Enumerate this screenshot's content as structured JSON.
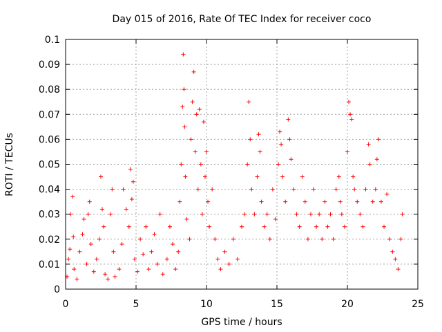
{
  "chart_data": {
    "type": "scatter",
    "title": "Day 015 of 2016, Rate Of TEC Index for receiver coco",
    "xlabel": "GPS time / hours",
    "ylabel": "ROTI / TECUs",
    "xlim": [
      0,
      25
    ],
    "ylim": [
      0,
      0.1
    ],
    "xticks": [
      0,
      5,
      10,
      15,
      20,
      25
    ],
    "xtick_labels": [
      "0",
      "5",
      "10",
      "15",
      "20",
      "25"
    ],
    "yticks": [
      0,
      0.01,
      0.02,
      0.03,
      0.04,
      0.05,
      0.06,
      0.07,
      0.08,
      0.09,
      0.1
    ],
    "ytick_labels": [
      "0",
      "0.01",
      "0.02",
      "0.03",
      "0.04",
      "0.05",
      "0.06",
      "0.07",
      "0.08",
      "0.09",
      "0.1"
    ],
    "grid": true,
    "marker": "+",
    "color": "#ff0000",
    "series": [
      {
        "name": "ROTI",
        "points": [
          [
            0.1,
            0.005
          ],
          [
            0.2,
            0.012
          ],
          [
            0.3,
            0.016
          ],
          [
            0.35,
            0.03
          ],
          [
            0.5,
            0.037
          ],
          [
            0.55,
            0.021
          ],
          [
            0.6,
            0.008
          ],
          [
            0.8,
            0.004
          ],
          [
            1.0,
            0.015
          ],
          [
            1.2,
            0.022
          ],
          [
            1.3,
            0.028
          ],
          [
            1.5,
            0.01
          ],
          [
            1.6,
            0.03
          ],
          [
            1.7,
            0.035
          ],
          [
            1.8,
            0.018
          ],
          [
            2.0,
            0.007
          ],
          [
            2.2,
            0.012
          ],
          [
            2.4,
            0.02
          ],
          [
            2.5,
            0.045
          ],
          [
            2.6,
            0.032
          ],
          [
            2.7,
            0.025
          ],
          [
            2.8,
            0.006
          ],
          [
            3.0,
            0.004
          ],
          [
            3.2,
            0.03
          ],
          [
            3.3,
            0.04
          ],
          [
            3.4,
            0.015
          ],
          [
            3.5,
            0.005
          ],
          [
            3.8,
            0.008
          ],
          [
            4.0,
            0.018
          ],
          [
            4.1,
            0.04
          ],
          [
            4.3,
            0.032
          ],
          [
            4.5,
            0.025
          ],
          [
            4.6,
            0.048
          ],
          [
            4.7,
            0.036
          ],
          [
            4.8,
            0.043
          ],
          [
            4.9,
            0.012
          ],
          [
            5.1,
            0.007
          ],
          [
            5.3,
            0.02
          ],
          [
            5.5,
            0.014
          ],
          [
            5.7,
            0.025
          ],
          [
            5.9,
            0.008
          ],
          [
            6.1,
            0.015
          ],
          [
            6.3,
            0.022
          ],
          [
            6.5,
            0.01
          ],
          [
            6.7,
            0.03
          ],
          [
            6.9,
            0.006
          ],
          [
            7.2,
            0.012
          ],
          [
            7.4,
            0.025
          ],
          [
            7.6,
            0.018
          ],
          [
            7.8,
            0.008
          ],
          [
            8.0,
            0.015
          ],
          [
            8.1,
            0.035
          ],
          [
            8.2,
            0.05
          ],
          [
            8.3,
            0.073
          ],
          [
            8.35,
            0.094
          ],
          [
            8.4,
            0.08
          ],
          [
            8.45,
            0.065
          ],
          [
            8.5,
            0.045
          ],
          [
            8.6,
            0.028
          ],
          [
            8.8,
            0.02
          ],
          [
            8.9,
            0.06
          ],
          [
            9.0,
            0.075
          ],
          [
            9.1,
            0.087
          ],
          [
            9.2,
            0.055
          ],
          [
            9.3,
            0.07
          ],
          [
            9.4,
            0.04
          ],
          [
            9.5,
            0.072
          ],
          [
            9.6,
            0.05
          ],
          [
            9.7,
            0.03
          ],
          [
            9.8,
            0.067
          ],
          [
            9.9,
            0.045
          ],
          [
            10.0,
            0.055
          ],
          [
            10.1,
            0.035
          ],
          [
            10.2,
            0.025
          ],
          [
            10.4,
            0.04
          ],
          [
            10.6,
            0.02
          ],
          [
            10.8,
            0.012
          ],
          [
            11.0,
            0.008
          ],
          [
            11.3,
            0.015
          ],
          [
            11.6,
            0.01
          ],
          [
            11.9,
            0.02
          ],
          [
            12.2,
            0.012
          ],
          [
            12.5,
            0.025
          ],
          [
            12.7,
            0.03
          ],
          [
            12.9,
            0.05
          ],
          [
            13.0,
            0.075
          ],
          [
            13.1,
            0.06
          ],
          [
            13.2,
            0.04
          ],
          [
            13.4,
            0.03
          ],
          [
            13.6,
            0.045
          ],
          [
            13.7,
            0.062
          ],
          [
            13.8,
            0.055
          ],
          [
            13.9,
            0.035
          ],
          [
            14.1,
            0.025
          ],
          [
            14.3,
            0.03
          ],
          [
            14.5,
            0.02
          ],
          [
            14.7,
            0.04
          ],
          [
            14.9,
            0.028
          ],
          [
            15.1,
            0.05
          ],
          [
            15.2,
            0.063
          ],
          [
            15.3,
            0.058
          ],
          [
            15.4,
            0.045
          ],
          [
            15.6,
            0.035
          ],
          [
            15.8,
            0.068
          ],
          [
            15.9,
            0.06
          ],
          [
            16.0,
            0.052
          ],
          [
            16.2,
            0.04
          ],
          [
            16.4,
            0.03
          ],
          [
            16.6,
            0.025
          ],
          [
            16.8,
            0.045
          ],
          [
            17.0,
            0.035
          ],
          [
            17.2,
            0.02
          ],
          [
            17.4,
            0.03
          ],
          [
            17.6,
            0.04
          ],
          [
            17.8,
            0.025
          ],
          [
            18.0,
            0.03
          ],
          [
            18.2,
            0.02
          ],
          [
            18.4,
            0.035
          ],
          [
            18.6,
            0.025
          ],
          [
            18.8,
            0.03
          ],
          [
            19.0,
            0.02
          ],
          [
            19.2,
            0.04
          ],
          [
            19.4,
            0.045
          ],
          [
            19.5,
            0.035
          ],
          [
            19.6,
            0.03
          ],
          [
            19.8,
            0.025
          ],
          [
            20.0,
            0.055
          ],
          [
            20.1,
            0.075
          ],
          [
            20.2,
            0.07
          ],
          [
            20.3,
            0.068
          ],
          [
            20.4,
            0.045
          ],
          [
            20.5,
            0.04
          ],
          [
            20.7,
            0.035
          ],
          [
            20.9,
            0.03
          ],
          [
            21.1,
            0.025
          ],
          [
            21.3,
            0.04
          ],
          [
            21.5,
            0.058
          ],
          [
            21.6,
            0.05
          ],
          [
            21.8,
            0.035
          ],
          [
            22.0,
            0.04
          ],
          [
            22.1,
            0.052
          ],
          [
            22.2,
            0.06
          ],
          [
            22.4,
            0.035
          ],
          [
            22.6,
            0.025
          ],
          [
            22.8,
            0.038
          ],
          [
            23.0,
            0.02
          ],
          [
            23.2,
            0.015
          ],
          [
            23.4,
            0.012
          ],
          [
            23.6,
            0.008
          ],
          [
            23.8,
            0.02
          ],
          [
            23.9,
            0.03
          ]
        ]
      }
    ]
  }
}
